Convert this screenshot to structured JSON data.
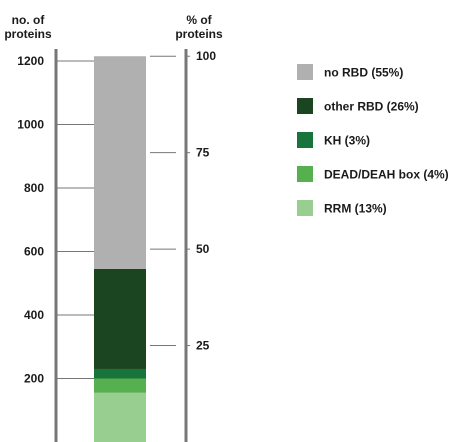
{
  "chart_data": {
    "type": "bar",
    "subtype": "stacked-single-column",
    "left_axis": {
      "title": [
        "no. of",
        "proteins"
      ],
      "range": [
        0,
        1200
      ],
      "ticks": [
        {
          "value": 200,
          "label": "200"
        },
        {
          "value": 400,
          "label": "400"
        },
        {
          "value": 600,
          "label": "600"
        },
        {
          "value": 800,
          "label": "800"
        },
        {
          "value": 1000,
          "label": "1000"
        },
        {
          "value": 1200,
          "label": "1200"
        }
      ]
    },
    "right_axis": {
      "title": [
        "% of",
        "proteins"
      ],
      "range": [
        0,
        100
      ],
      "ticks": [
        {
          "value": 25,
          "label": "25"
        },
        {
          "value": 50,
          "label": "50"
        },
        {
          "value": 75,
          "label": "75"
        },
        {
          "value": 100,
          "label": "100"
        }
      ]
    },
    "total": 1215,
    "segments": [
      {
        "name": "RRM (13%)",
        "value": 155,
        "color": "#98cf90"
      },
      {
        "name": "DEAD/DEAH box (4%)",
        "value": 45,
        "color": "#56b04f"
      },
      {
        "name": "KH (3%)",
        "value": 30,
        "color": "#18743a"
      },
      {
        "name": "other RBD (26%)",
        "value": 315,
        "color": "#1b4521"
      },
      {
        "name": "no RBD (55%)",
        "value": 670,
        "color": "#b0b0b0"
      }
    ],
    "legend": {
      "placement": "right",
      "order": [
        "no RBD (55%)",
        "other RBD (26%)",
        "KH (3%)",
        "DEAD/DEAH box (4%)",
        "RRM (13%)"
      ]
    },
    "grid": false
  },
  "colors": {
    "axis": "#777777",
    "text": "#1a1a1a"
  }
}
